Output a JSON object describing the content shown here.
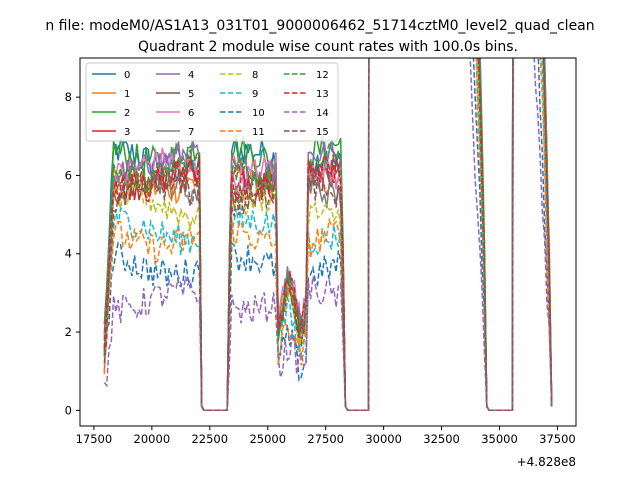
{
  "figure": {
    "suptitle": "n file: modeM0/AS1A13_031T01_9000006462_51714cztM0_level2_quad_clean",
    "title": "Quadrant 2 module wise count rates with 100.0s bins.",
    "offset_label": "+4.828e8"
  },
  "chart_data": {
    "type": "line",
    "title": "Quadrant 2 module wise count rates with 100.0s bins.",
    "xlabel": "",
    "ylabel": "",
    "x_offset": 482800000,
    "xlim": [
      16900,
      38300
    ],
    "ylim": [
      -0.4,
      9.0
    ],
    "xticks": [
      17500,
      20000,
      22500,
      25000,
      27500,
      30000,
      32500,
      35000,
      37500
    ],
    "yticks": [
      0,
      2,
      4,
      6,
      8
    ],
    "grid": false,
    "legend": {
      "placement": "top-left",
      "columns": 4
    },
    "segments": [
      {
        "start": 17950,
        "end": 22200,
        "rise": 18350
      },
      {
        "start": 23300,
        "end": 28400,
        "rise": 23400
      },
      {
        "start": 29400,
        "end": 34500,
        "rise": 29500
      },
      {
        "start": 35600,
        "end": 37300,
        "rise": 35700
      }
    ],
    "series": [
      {
        "name": "0",
        "style": "solid",
        "color": "#1f77b4",
        "level": 6.4
      },
      {
        "name": "1",
        "style": "solid",
        "color": "#ff7f0e",
        "level": 5.9
      },
      {
        "name": "2",
        "style": "solid",
        "color": "#2ca02c",
        "level": 6.6
      },
      {
        "name": "3",
        "style": "solid",
        "color": "#d62728",
        "level": 6.0
      },
      {
        "name": "4",
        "style": "solid",
        "color": "#9467bd",
        "level": 6.3
      },
      {
        "name": "5",
        "style": "solid",
        "color": "#8c564b",
        "level": 5.8
      },
      {
        "name": "6",
        "style": "solid",
        "color": "#e377c2",
        "level": 6.1
      },
      {
        "name": "7",
        "style": "solid",
        "color": "#7f7f7f",
        "level": 5.7
      },
      {
        "name": "8",
        "style": "dashed",
        "color": "#bcbd22",
        "level": 5.2
      },
      {
        "name": "9",
        "style": "dashed",
        "color": "#17becf",
        "level": 4.6
      },
      {
        "name": "10",
        "style": "dashed",
        "color": "#1f77b4",
        "level": 3.7
      },
      {
        "name": "11",
        "style": "dashed",
        "color": "#ff7f0e",
        "level": 4.4
      },
      {
        "name": "12",
        "style": "dashed",
        "color": "#2ca02c",
        "level": 6.2
      },
      {
        "name": "13",
        "style": "dashed",
        "color": "#d62728",
        "level": 5.9
      },
      {
        "name": "14",
        "style": "dashed",
        "color": "#9467bd",
        "level": 2.8
      },
      {
        "name": "15",
        "style": "dashed",
        "color": "#8c564b",
        "level": 5.5
      }
    ]
  }
}
